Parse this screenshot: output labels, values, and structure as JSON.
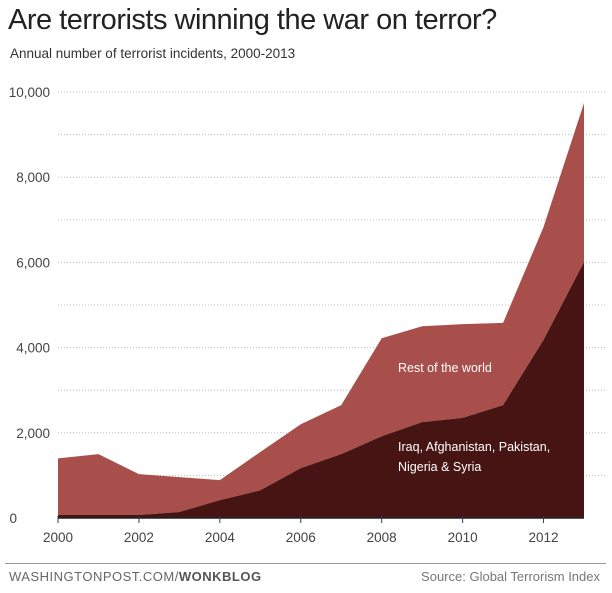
{
  "chart_data": {
    "type": "area",
    "stacked": true,
    "title": "Are terrorists winning the war on terror?",
    "subtitle": "Annual number of terrorist incidents, 2000-2013",
    "x": [
      2000,
      2001,
      2002,
      2003,
      2004,
      2005,
      2006,
      2007,
      2008,
      2009,
      2010,
      2011,
      2012,
      2013
    ],
    "xticks": [
      "2000",
      "2002",
      "2004",
      "2006",
      "2008",
      "2010",
      "2012"
    ],
    "yticks": [
      "0",
      "2,000",
      "4,000",
      "6,000",
      "8,000",
      "10,000"
    ],
    "ylim": [
      0,
      10000
    ],
    "xlim": [
      2000,
      2013
    ],
    "grid": true,
    "series": [
      {
        "name": "Iraq, Afghanistan, Pakistan, Nigeria & Syria",
        "label_lines": [
          "Iraq, Afghanistan, Pakistan,",
          "Nigeria & Syria"
        ],
        "color": "#461513",
        "values": [
          70,
          70,
          70,
          140,
          420,
          650,
          1170,
          1500,
          1920,
          2250,
          2350,
          2650,
          4180,
          6010
        ]
      },
      {
        "name": "Rest of the world",
        "label_lines": [
          "Rest of the world"
        ],
        "color": "#a94f4b",
        "total": [
          1400,
          1500,
          1030,
          960,
          890,
          1550,
          2200,
          2650,
          4220,
          4500,
          4550,
          4580,
          6830,
          9740
        ]
      }
    ]
  },
  "footer": {
    "site": "WASHINGTONPOST.COM/",
    "brand": "WONKBLOG",
    "source": "Source: Global Terrorism Index"
  }
}
